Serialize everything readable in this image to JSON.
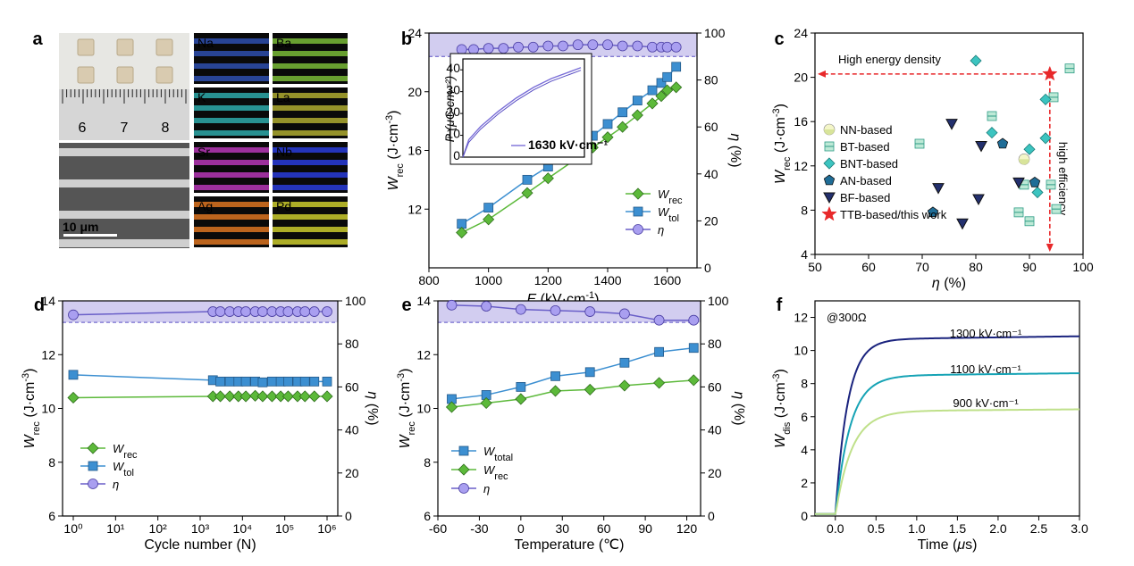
{
  "panels": {
    "a": {
      "label": "a",
      "scale_bar": "10 μm",
      "ruler_numbers": [
        "6",
        "7",
        "8"
      ],
      "eds_elements": [
        {
          "name": "Na",
          "color": "#2f52b8"
        },
        {
          "name": "Ba",
          "color": "#7fc43a"
        },
        {
          "name": "K",
          "color": "#2fb3b3"
        },
        {
          "name": "La",
          "color": "#b8b432"
        },
        {
          "name": "Sr",
          "color": "#c03ac0"
        },
        {
          "name": "Nb",
          "color": "#2a3fe6"
        },
        {
          "name": "Ag",
          "color": "#e87a22"
        },
        {
          "name": "Pd",
          "color": "#d6d62e"
        }
      ]
    },
    "b": {
      "label": "b",
      "xlabel": "E (kV·cm⁻¹)",
      "ylabel_left": "Wrec (J·cm⁻³)",
      "ylabel_right": "η (%)",
      "inset_ylabel": "P (μC cm⁻²)",
      "inset_legend": "1630 kV·cm⁻¹",
      "legend": [
        "Wrec",
        "Wtol",
        "η"
      ]
    },
    "c": {
      "label": "c",
      "xlabel": "η (%)",
      "ylabel": "Wrec (J·cm⁻³)",
      "annotation_top": "High energy density",
      "annotation_side": "high efficiency",
      "legend": [
        "NN-based",
        "BT-based",
        "BNT-based",
        "AN-based",
        "BF-based",
        "TTB-based/this work"
      ]
    },
    "d": {
      "label": "d",
      "xlabel": "Cycle number (N)",
      "ylabel_left": "Wrec (J·cm⁻³)",
      "ylabel_right": "η (%)",
      "legend": [
        "Wrec",
        "Wtol",
        "η"
      ]
    },
    "e": {
      "label": "e",
      "xlabel": "Temperature (℃)",
      "ylabel_left": "Wrec (J·cm⁻³)",
      "ylabel_right": "η (%)",
      "legend": [
        "Wtotal",
        "Wrec",
        "η"
      ]
    },
    "f": {
      "label": "f",
      "xlabel": "Time (μs)",
      "ylabel": "Wdis (J·cm⁻³)",
      "annotation": "@300Ω",
      "curve_labels": [
        "1300 kV·cm⁻¹",
        "1100 kV·cm⁻¹",
        "900 kV·cm⁻¹"
      ]
    }
  },
  "chart_data": [
    {
      "panel": "b",
      "type": "line",
      "xlim": [
        800,
        1700
      ],
      "ylim_left": [
        8,
        24
      ],
      "ylim_right": [
        0,
        100
      ],
      "xticks": [
        800,
        1000,
        1200,
        1400,
        1600
      ],
      "yticks_left": [
        12,
        16,
        20,
        24
      ],
      "yticks_right": [
        0,
        20,
        40,
        60,
        80,
        100
      ],
      "x": [
        910,
        1000,
        1130,
        1200,
        1300,
        1350,
        1400,
        1450,
        1500,
        1550,
        1580,
        1600,
        1630
      ],
      "series": [
        {
          "name": "Wrec",
          "axis": "left",
          "values": [
            10.4,
            11.3,
            13.1,
            14.1,
            15.5,
            16.2,
            16.9,
            17.6,
            18.4,
            19.2,
            19.7,
            20.1,
            20.3
          ]
        },
        {
          "name": "Wtol",
          "axis": "left",
          "values": [
            11.0,
            12.1,
            14.0,
            14.9,
            16.4,
            17.0,
            17.8,
            18.6,
            19.4,
            20.1,
            20.6,
            21.0,
            21.7
          ]
        },
        {
          "name": "η",
          "axis": "right",
          "x": [
            910,
            950,
            1000,
            1050,
            1100,
            1150,
            1200,
            1250,
            1300,
            1350,
            1400,
            1450,
            1500,
            1550,
            1580,
            1600,
            1630
          ],
          "values": [
            93,
            93,
            93.5,
            93.5,
            94,
            94,
            94.5,
            94.5,
            95,
            95,
            95,
            94.5,
            94.5,
            94,
            94,
            94,
            94
          ]
        }
      ],
      "inset": {
        "type": "line",
        "xlabel": "",
        "ylabel": "P (μC cm⁻²)",
        "ylim": [
          0,
          45
        ],
        "yticks": [
          0,
          10,
          20,
          30,
          40
        ],
        "series_name": "1630 kV·cm⁻¹",
        "curve": [
          [
            0,
            0
          ],
          [
            0.05,
            8
          ],
          [
            0.15,
            14
          ],
          [
            0.3,
            21
          ],
          [
            0.45,
            27
          ],
          [
            0.6,
            32
          ],
          [
            0.75,
            36
          ],
          [
            0.9,
            39
          ],
          [
            1.0,
            41
          ]
        ]
      }
    },
    {
      "panel": "c",
      "type": "scatter",
      "xlim": [
        50,
        100
      ],
      "ylim": [
        4,
        24
      ],
      "xticks": [
        50,
        60,
        70,
        80,
        90,
        100
      ],
      "yticks": [
        4,
        8,
        12,
        16,
        20,
        24
      ],
      "series": [
        {
          "name": "NN-based",
          "points": [
            [
              89,
              12.6
            ]
          ]
        },
        {
          "name": "BT-based",
          "points": [
            [
              69.5,
              14.0
            ],
            [
              83,
              16.5
            ],
            [
              88,
              7.8
            ],
            [
              89,
              10.3
            ],
            [
              90,
              7.0
            ],
            [
              94,
              10.3
            ],
            [
              94.5,
              18.2
            ],
            [
              95,
              8.1
            ],
            [
              97.5,
              20.8
            ]
          ]
        },
        {
          "name": "BNT-based",
          "points": [
            [
              80,
              21.5
            ],
            [
              83,
              15.0
            ],
            [
              90,
              13.5
            ],
            [
              91.5,
              9.6
            ],
            [
              93,
              14.5
            ],
            [
              93,
              18.0
            ]
          ]
        },
        {
          "name": "AN-based",
          "points": [
            [
              72,
              7.8
            ],
            [
              85,
              14.0
            ],
            [
              91,
              10.5
            ]
          ]
        },
        {
          "name": "BF-based",
          "points": [
            [
              73,
              10.0
            ],
            [
              75.5,
              15.8
            ],
            [
              77.5,
              6.8
            ],
            [
              80.5,
              9.0
            ],
            [
              81,
              13.8
            ],
            [
              88,
              10.5
            ]
          ]
        },
        {
          "name": "TTB-based/this work",
          "points": [
            [
              93.8,
              20.3
            ]
          ]
        }
      ]
    },
    {
      "panel": "d",
      "type": "line",
      "xscale": "log",
      "xlim": [
        1,
        1000000
      ],
      "xticks": [
        "10⁰",
        "10¹",
        "10²",
        "10³",
        "10⁴",
        "10⁵",
        "10⁶"
      ],
      "ylim_left": [
        6,
        14
      ],
      "yticks_left": [
        6,
        8,
        10,
        12,
        14
      ],
      "ylim_right": [
        0,
        100
      ],
      "yticks_right": [
        0,
        20,
        40,
        60,
        80,
        100
      ],
      "x": [
        1,
        2000,
        3000,
        5000,
        8000,
        12000,
        20000,
        30000,
        50000,
        80000,
        120000,
        200000,
        300000,
        500000,
        1000000
      ],
      "series": [
        {
          "name": "Wrec",
          "axis": "left",
          "values": [
            10.4,
            10.45,
            10.45,
            10.45,
            10.45,
            10.45,
            10.47,
            10.45,
            10.45,
            10.45,
            10.45,
            10.45,
            10.45,
            10.45,
            10.45
          ]
        },
        {
          "name": "Wtol",
          "axis": "left",
          "values": [
            11.25,
            11.05,
            11.0,
            11.0,
            11.0,
            11.0,
            11.0,
            10.97,
            11.0,
            11.0,
            11.0,
            11.0,
            11.0,
            11.0,
            11.0
          ]
        },
        {
          "name": "η",
          "axis": "right",
          "values": [
            93.5,
            95,
            95,
            95,
            95,
            95,
            95,
            95,
            95,
            95,
            95,
            95,
            95,
            95,
            95
          ]
        }
      ]
    },
    {
      "panel": "e",
      "type": "line",
      "xlim": [
        -60,
        130
      ],
      "xticks": [
        -60,
        -30,
        0,
        30,
        60,
        90,
        120
      ],
      "ylim_left": [
        6,
        14
      ],
      "yticks_left": [
        6,
        8,
        10,
        12,
        14
      ],
      "ylim_right": [
        0,
        100
      ],
      "yticks_right": [
        0,
        20,
        40,
        60,
        80,
        100
      ],
      "x": [
        -50,
        -25,
        0,
        25,
        50,
        75,
        100,
        125
      ],
      "series": [
        {
          "name": "Wtotal",
          "axis": "left",
          "values": [
            10.35,
            10.5,
            10.8,
            11.2,
            11.35,
            11.7,
            12.1,
            12.25
          ]
        },
        {
          "name": "Wrec",
          "axis": "left",
          "values": [
            10.05,
            10.2,
            10.35,
            10.65,
            10.7,
            10.85,
            10.95,
            11.05
          ]
        },
        {
          "name": "η",
          "axis": "right",
          "values": [
            98,
            97.5,
            96,
            95.5,
            95,
            94,
            91,
            91
          ]
        }
      ]
    },
    {
      "panel": "f",
      "type": "line",
      "xlim": [
        -0.25,
        3.0
      ],
      "xticks": [
        0.0,
        0.5,
        1.0,
        1.5,
        2.0,
        2.5,
        3.0
      ],
      "ylim": [
        0,
        13
      ],
      "yticks": [
        0,
        2,
        4,
        6,
        8,
        10,
        12
      ],
      "series": [
        {
          "name": "1300 kV·cm⁻¹",
          "color": "#1a237e",
          "values_final": 10.7,
          "tau": 0.15
        },
        {
          "name": "1100 kV·cm⁻¹",
          "color": "#16a3b5",
          "values_final": 8.5,
          "tau": 0.18
        },
        {
          "name": "900 kV·cm⁻¹",
          "color": "#bfe08a",
          "values_final": 6.35,
          "tau": 0.2
        }
      ]
    }
  ],
  "colors": {
    "green": "#5cb93a",
    "blue": "#3c8fd1",
    "purple": "#7b6fd8",
    "band": "#d2cdf0",
    "red": "#e8282a",
    "navy": "#1a237e",
    "teal": "#16a3b5",
    "lightgreen": "#bfe08a"
  }
}
